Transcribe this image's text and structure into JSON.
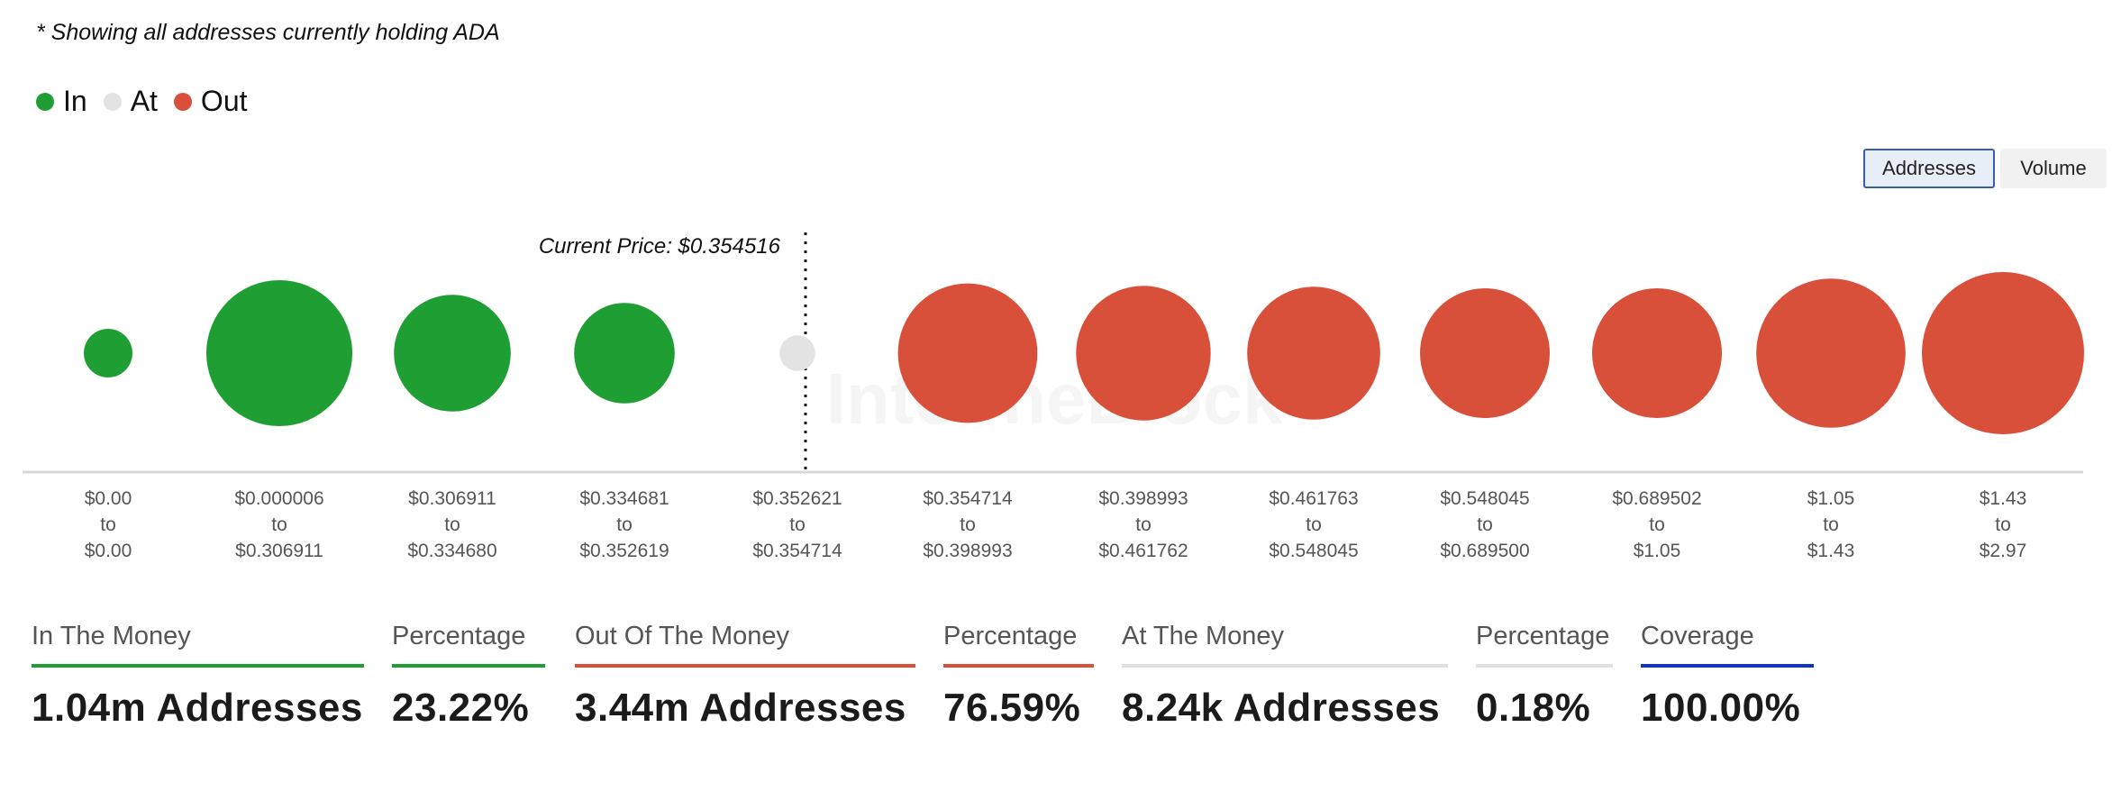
{
  "subtitle": "* Showing all addresses currently holding ADA",
  "legend": [
    {
      "label": "In",
      "color": "#1f9e34"
    },
    {
      "label": "At",
      "color": "#e3e3e3"
    },
    {
      "label": "Out",
      "color": "#d9503a"
    }
  ],
  "toggle": {
    "addresses": "Addresses",
    "volume": "Volume",
    "selected": "Addresses"
  },
  "watermark": "IntoTheBlock",
  "chart_data": {
    "type": "bubble",
    "current_price_label": "Current Price: $0.354516",
    "current_price": 0.354516,
    "categories": [
      {
        "from": "$0.00",
        "to": "$0.00",
        "status": "In",
        "relative_size": 0.3
      },
      {
        "from": "$0.000006",
        "to": "$0.306911",
        "status": "In",
        "relative_size": 0.9
      },
      {
        "from": "$0.306911",
        "to": "$0.334680",
        "status": "In",
        "relative_size": 0.72
      },
      {
        "from": "$0.334681",
        "to": "$0.352619",
        "status": "In",
        "relative_size": 0.62
      },
      {
        "from": "$0.352621",
        "to": "$0.354714",
        "status": "At",
        "relative_size": 0.22
      },
      {
        "from": "$0.354714",
        "to": "$0.398993",
        "status": "Out",
        "relative_size": 0.86
      },
      {
        "from": "$0.398993",
        "to": "$0.461762",
        "status": "Out",
        "relative_size": 0.83
      },
      {
        "from": "$0.461763",
        "to": "$0.548045",
        "status": "Out",
        "relative_size": 0.82
      },
      {
        "from": "$0.548045",
        "to": "$0.689500",
        "status": "Out",
        "relative_size": 0.8
      },
      {
        "from": "$0.689502",
        "to": "$1.05",
        "status": "Out",
        "relative_size": 0.8
      },
      {
        "from": "$1.05",
        "to": "$1.43",
        "status": "Out",
        "relative_size": 0.92
      },
      {
        "from": "$1.43",
        "to": "$2.97",
        "status": "Out",
        "relative_size": 1.0
      }
    ],
    "range_joiner": "to"
  },
  "stats": [
    {
      "label": "In The Money",
      "value": "1.04m Addresses",
      "color": "#1f9e34"
    },
    {
      "label": "Percentage",
      "value": "23.22%",
      "color": "#1f9e34"
    },
    {
      "label": "Out Of The Money",
      "value": "3.44m Addresses",
      "color": "#d9503a"
    },
    {
      "label": "Percentage",
      "value": "76.59%",
      "color": "#d9503a"
    },
    {
      "label": "At The Money",
      "value": "8.24k Addresses",
      "color": "#e0e0e0"
    },
    {
      "label": "Percentage",
      "value": "0.18%",
      "color": "#e0e0e0"
    },
    {
      "label": "Coverage",
      "value": "100.00%",
      "color": "#1233c8"
    }
  ]
}
